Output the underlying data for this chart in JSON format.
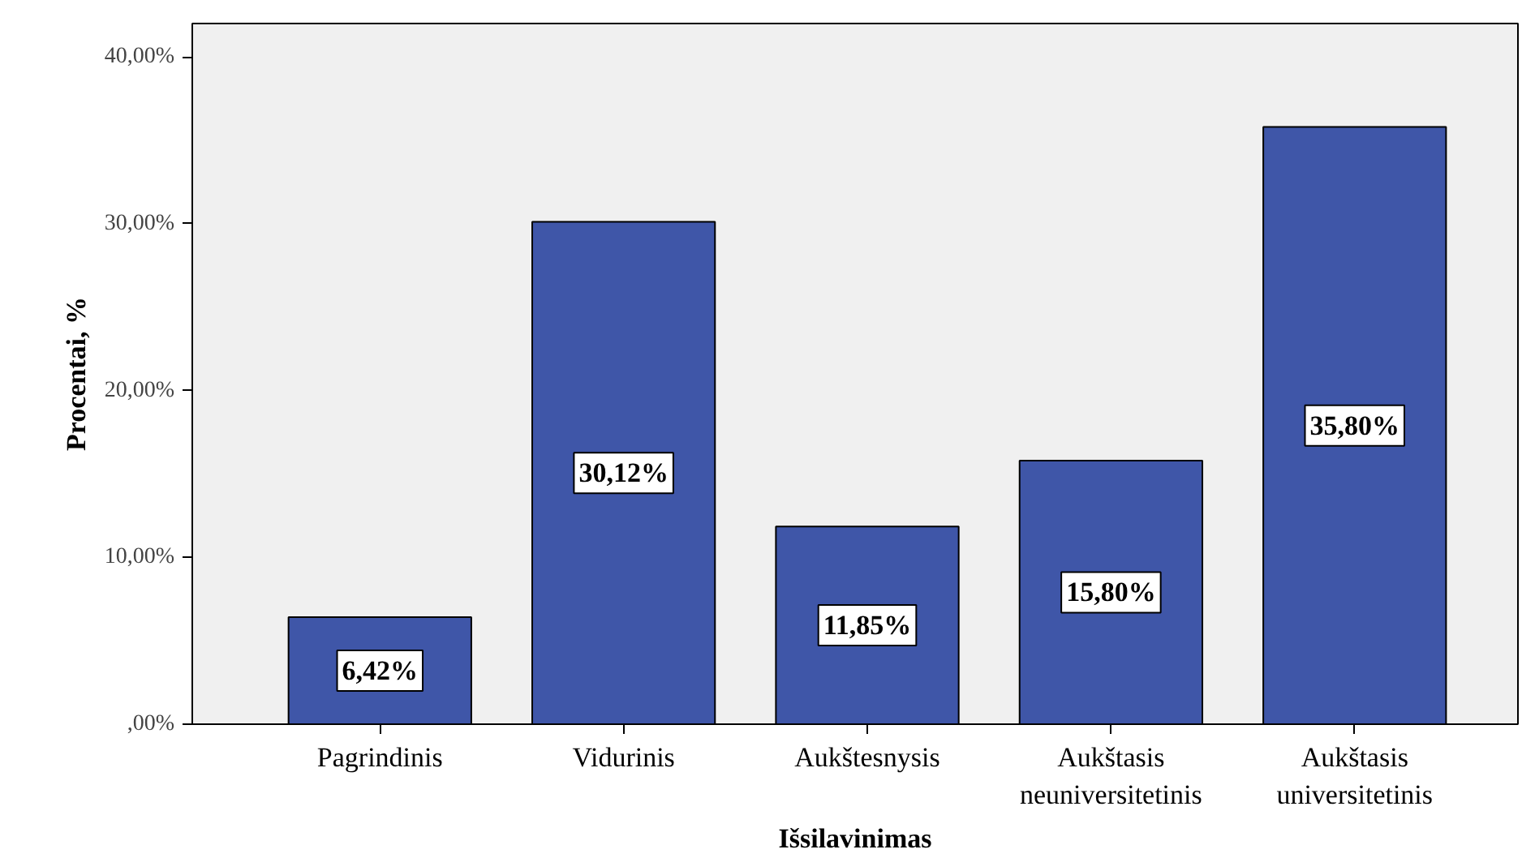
{
  "chart_data": {
    "type": "bar",
    "xlabel": "Išsilavinimas",
    "ylabel": "Procentai, %",
    "categories": [
      "Pagrindinis",
      "Vidurinis",
      "Aukštesnysis",
      "Aukštasis\nneuniversitetinis",
      "Aukštasis\nuniversitetinis"
    ],
    "values": [
      6.42,
      30.12,
      11.85,
      15.8,
      35.8
    ],
    "value_labels": [
      "6,42%",
      "30,12%",
      "11,85%",
      "15,80%",
      "35,80%"
    ],
    "color": "#3f56a8",
    "ylim": [
      0,
      42
    ],
    "yticks": [
      {
        "value": 0,
        "label": ",00%"
      },
      {
        "value": 10,
        "label": "10,00%"
      },
      {
        "value": 20,
        "label": "20,00%"
      },
      {
        "value": 30,
        "label": "30,00%"
      },
      {
        "value": 40,
        "label": "40,00%"
      }
    ],
    "grid": false
  }
}
